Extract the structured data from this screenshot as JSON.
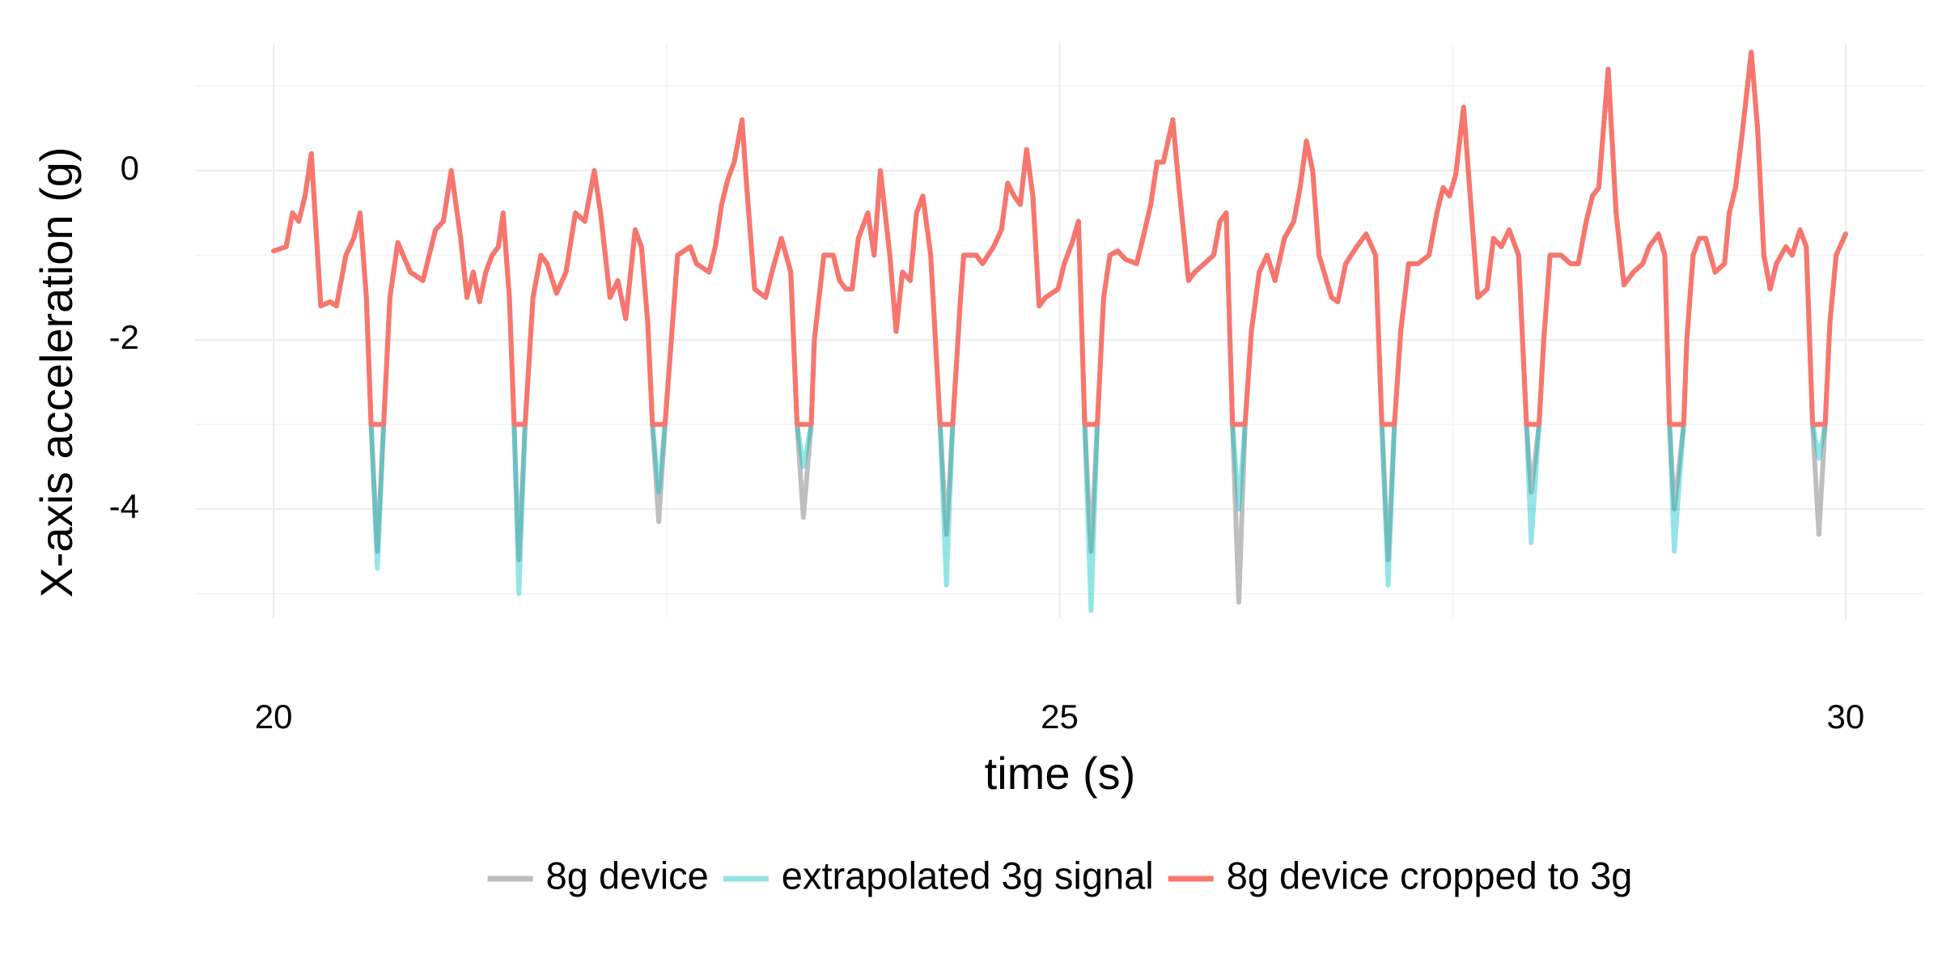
{
  "chart_data": {
    "type": "line",
    "x_label": "time (s)",
    "y_label": "X-axis acceleration (g)",
    "x": [
      20.0,
      20.08,
      20.12,
      20.16,
      20.2,
      20.24,
      20.3,
      20.36,
      20.4,
      20.46,
      20.51,
      20.55,
      20.59,
      20.62,
      20.66,
      20.7,
      20.74,
      20.79,
      20.87,
      20.95,
      20.99,
      21.03,
      21.08,
      21.13,
      21.19,
      21.23,
      21.27,
      21.31,
      21.35,
      21.39,
      21.43,
      21.46,
      21.5,
      21.53,
      21.56,
      21.6,
      21.65,
      21.7,
      21.74,
      21.8,
      21.86,
      21.92,
      21.98,
      22.04,
      22.08,
      22.14,
      22.19,
      22.24,
      22.3,
      22.34,
      22.38,
      22.41,
      22.45,
      22.49,
      22.53,
      22.57,
      22.65,
      22.69,
      22.77,
      22.81,
      22.85,
      22.89,
      22.93,
      22.98,
      23.01,
      23.06,
      23.13,
      23.17,
      23.23,
      23.29,
      23.33,
      23.37,
      23.42,
      23.44,
      23.5,
      23.56,
      23.6,
      23.64,
      23.68,
      23.72,
      23.78,
      23.82,
      23.86,
      23.92,
      23.96,
      24.0,
      24.05,
      24.09,
      24.13,
      24.18,
      24.24,
      24.28,
      24.32,
      24.37,
      24.39,
      24.47,
      24.51,
      24.58,
      24.63,
      24.67,
      24.71,
      24.75,
      24.79,
      24.83,
      24.87,
      24.91,
      24.99,
      25.03,
      25.08,
      25.12,
      25.16,
      25.2,
      25.24,
      25.28,
      25.32,
      25.37,
      25.42,
      25.49,
      25.53,
      25.58,
      25.62,
      25.66,
      25.72,
      25.76,
      25.82,
      25.86,
      25.92,
      25.98,
      26.02,
      26.06,
      26.1,
      26.14,
      26.18,
      26.22,
      26.27,
      26.32,
      26.37,
      26.43,
      26.49,
      26.53,
      26.57,
      26.61,
      26.65,
      26.73,
      26.77,
      26.82,
      26.89,
      26.95,
      27.01,
      27.05,
      27.09,
      27.13,
      27.17,
      27.22,
      27.28,
      27.35,
      27.4,
      27.44,
      27.48,
      27.52,
      27.57,
      27.62,
      27.66,
      27.72,
      27.76,
      27.81,
      27.86,
      27.92,
      27.97,
      28.0,
      28.05,
      28.08,
      28.12,
      28.19,
      28.25,
      28.3,
      28.35,
      28.39,
      28.43,
      28.49,
      28.54,
      28.59,
      28.65,
      28.71,
      28.75,
      28.81,
      28.85,
      28.88,
      28.91,
      28.97,
      28.99,
      29.03,
      29.07,
      29.11,
      29.17,
      29.23,
      29.26,
      29.3,
      29.34,
      29.4,
      29.44,
      29.48,
      29.52,
      29.56,
      29.62,
      29.66,
      29.71,
      29.75,
      29.79,
      29.83,
      29.87,
      29.9,
      29.94,
      30.0
    ],
    "series": [
      {
        "name": "8g device",
        "color": "#bebebe",
        "values": [
          -0.95,
          -0.9,
          -0.5,
          -0.6,
          -0.3,
          0.2,
          -1.6,
          -1.55,
          -1.6,
          -1.0,
          -0.8,
          -0.5,
          -1.5,
          -3.0,
          -4.5,
          -3.0,
          -1.5,
          -0.85,
          -1.2,
          -1.3,
          -1.0,
          -0.7,
          -0.6,
          0.0,
          -0.8,
          -1.5,
          -1.2,
          -1.55,
          -1.2,
          -1.0,
          -0.9,
          -0.5,
          -1.5,
          -3.0,
          -4.6,
          -3.0,
          -1.5,
          -1.0,
          -1.1,
          -1.45,
          -1.2,
          -0.5,
          -0.6,
          0.0,
          -0.5,
          -1.5,
          -1.3,
          -1.75,
          -0.7,
          -0.9,
          -1.8,
          -3.0,
          -4.15,
          -3.0,
          -2.0,
          -1.0,
          -0.9,
          -1.1,
          -1.2,
          -0.9,
          -0.4,
          -0.1,
          0.1,
          0.6,
          -0.2,
          -1.4,
          -1.5,
          -1.2,
          -0.8,
          -1.2,
          -3.0,
          -4.1,
          -3.0,
          -2.0,
          -1.0,
          -1.0,
          -1.3,
          -1.4,
          -1.4,
          -0.8,
          -0.5,
          -1.0,
          0.0,
          -1.0,
          -1.9,
          -1.2,
          -1.3,
          -0.5,
          -0.3,
          -1.0,
          -3.0,
          -4.3,
          -3.0,
          -1.5,
          -1.0,
          -1.0,
          -1.1,
          -0.9,
          -0.7,
          -0.15,
          -0.3,
          -0.4,
          0.25,
          -0.3,
          -1.6,
          -1.5,
          -1.4,
          -1.1,
          -0.85,
          -0.6,
          -3.0,
          -4.5,
          -3.0,
          -1.5,
          -1.0,
          -0.95,
          -1.05,
          -1.1,
          -0.8,
          -0.4,
          0.1,
          0.1,
          0.6,
          -0.2,
          -1.3,
          -1.2,
          -1.1,
          -1.0,
          -0.6,
          -0.5,
          -3.0,
          -5.1,
          -3.0,
          -1.9,
          -1.2,
          -1.0,
          -1.3,
          -0.8,
          -0.6,
          -0.2,
          0.35,
          0.0,
          -1.0,
          -1.5,
          -1.55,
          -1.1,
          -0.9,
          -0.75,
          -1.0,
          -3.0,
          -4.6,
          -3.0,
          -1.9,
          -1.1,
          -1.1,
          -1.0,
          -0.5,
          -0.2,
          -0.3,
          -0.05,
          0.75,
          -0.5,
          -1.5,
          -1.4,
          -0.8,
          -0.9,
          -0.7,
          -1.0,
          -3.0,
          -3.8,
          -3.0,
          -2.0,
          -1.0,
          -1.0,
          -1.1,
          -1.1,
          -0.6,
          -0.3,
          -0.2,
          1.2,
          -0.5,
          -1.35,
          -1.2,
          -1.1,
          -0.9,
          -0.75,
          -1.0,
          -3.0,
          -4.0,
          -3.0,
          -2.0,
          -1.0,
          -0.8,
          -0.8,
          -1.2,
          -1.1,
          -0.5,
          -0.2,
          0.4,
          1.4,
          0.5,
          -1.0,
          -1.4,
          -1.1,
          -0.9,
          -1.0,
          -0.7,
          -0.9,
          -3.0,
          -4.3,
          -3.0,
          -1.8,
          -1.0,
          -0.75
        ]
      },
      {
        "name": "extrapolated 3g signal",
        "color": "rgba(0,191,196,0.42)",
        "values": [
          -0.95,
          -0.9,
          -0.5,
          -0.6,
          -0.3,
          0.2,
          -1.6,
          -1.55,
          -1.6,
          -1.0,
          -0.8,
          -0.5,
          -1.5,
          -3.0,
          -4.7,
          -3.0,
          -1.5,
          -0.85,
          -1.2,
          -1.3,
          -1.0,
          -0.7,
          -0.6,
          0.0,
          -0.8,
          -1.5,
          -1.2,
          -1.55,
          -1.2,
          -1.0,
          -0.9,
          -0.5,
          -1.5,
          -3.0,
          -5.0,
          -3.0,
          -1.5,
          -1.0,
          -1.1,
          -1.45,
          -1.2,
          -0.5,
          -0.6,
          0.0,
          -0.5,
          -1.5,
          -1.3,
          -1.75,
          -0.7,
          -0.9,
          -1.8,
          -3.0,
          -3.8,
          -3.0,
          -2.0,
          -1.0,
          -0.9,
          -1.1,
          -1.2,
          -0.9,
          -0.4,
          -0.1,
          0.1,
          0.6,
          -0.2,
          -1.4,
          -1.5,
          -1.2,
          -0.8,
          -1.2,
          -3.0,
          -3.5,
          -3.0,
          -2.0,
          -1.0,
          -1.0,
          -1.3,
          -1.4,
          -1.4,
          -0.8,
          -0.5,
          -1.0,
          0.0,
          -1.0,
          -1.9,
          -1.2,
          -1.3,
          -0.5,
          -0.3,
          -1.0,
          -3.0,
          -4.9,
          -3.0,
          -1.5,
          -1.0,
          -1.0,
          -1.1,
          -0.9,
          -0.7,
          -0.15,
          -0.3,
          -0.4,
          0.25,
          -0.3,
          -1.6,
          -1.5,
          -1.4,
          -1.1,
          -0.85,
          -0.6,
          -3.0,
          -5.2,
          -3.0,
          -1.5,
          -1.0,
          -0.95,
          -1.05,
          -1.1,
          -0.8,
          -0.4,
          0.1,
          0.1,
          0.6,
          -0.2,
          -1.3,
          -1.2,
          -1.1,
          -1.0,
          -0.6,
          -0.5,
          -3.0,
          -4.0,
          -3.0,
          -1.9,
          -1.2,
          -1.0,
          -1.3,
          -0.8,
          -0.6,
          -0.2,
          0.35,
          0.0,
          -1.0,
          -1.5,
          -1.55,
          -1.1,
          -0.9,
          -0.75,
          -1.0,
          -3.0,
          -4.9,
          -3.0,
          -1.9,
          -1.1,
          -1.1,
          -1.0,
          -0.5,
          -0.2,
          -0.3,
          -0.05,
          0.75,
          -0.5,
          -1.5,
          -1.4,
          -0.8,
          -0.9,
          -0.7,
          -1.0,
          -3.0,
          -4.4,
          -3.0,
          -2.0,
          -1.0,
          -1.0,
          -1.1,
          -1.1,
          -0.6,
          -0.3,
          -0.2,
          1.2,
          -0.5,
          -1.35,
          -1.2,
          -1.1,
          -0.9,
          -0.75,
          -1.0,
          -3.0,
          -4.5,
          -3.0,
          -2.0,
          -1.0,
          -0.8,
          -0.8,
          -1.2,
          -1.1,
          -0.5,
          -0.2,
          0.4,
          1.4,
          0.5,
          -1.0,
          -1.4,
          -1.1,
          -0.9,
          -1.0,
          -0.7,
          -0.9,
          -3.0,
          -3.4,
          -3.0,
          -1.8,
          -1.0,
          -0.75
        ]
      },
      {
        "name": "8g device cropped to 3g",
        "color": "#F8766D",
        "values": [
          -0.95,
          -0.9,
          -0.5,
          -0.6,
          -0.3,
          0.2,
          -1.6,
          -1.55,
          -1.6,
          -1.0,
          -0.8,
          -0.5,
          -1.5,
          -3.0,
          -3.0,
          -3.0,
          -1.5,
          -0.85,
          -1.2,
          -1.3,
          -1.0,
          -0.7,
          -0.6,
          0.0,
          -0.8,
          -1.5,
          -1.2,
          -1.55,
          -1.2,
          -1.0,
          -0.9,
          -0.5,
          -1.5,
          -3.0,
          -3.0,
          -3.0,
          -1.5,
          -1.0,
          -1.1,
          -1.45,
          -1.2,
          -0.5,
          -0.6,
          0.0,
          -0.5,
          -1.5,
          -1.3,
          -1.75,
          -0.7,
          -0.9,
          -1.8,
          -3.0,
          -3.0,
          -3.0,
          -2.0,
          -1.0,
          -0.9,
          -1.1,
          -1.2,
          -0.9,
          -0.4,
          -0.1,
          0.1,
          0.6,
          -0.2,
          -1.4,
          -1.5,
          -1.2,
          -0.8,
          -1.2,
          -3.0,
          -3.0,
          -3.0,
          -2.0,
          -1.0,
          -1.0,
          -1.3,
          -1.4,
          -1.4,
          -0.8,
          -0.5,
          -1.0,
          0.0,
          -1.0,
          -1.9,
          -1.2,
          -1.3,
          -0.5,
          -0.3,
          -1.0,
          -3.0,
          -3.0,
          -3.0,
          -1.5,
          -1.0,
          -1.0,
          -1.1,
          -0.9,
          -0.7,
          -0.15,
          -0.3,
          -0.4,
          0.25,
          -0.3,
          -1.6,
          -1.5,
          -1.4,
          -1.1,
          -0.85,
          -0.6,
          -3.0,
          -3.0,
          -3.0,
          -1.5,
          -1.0,
          -0.95,
          -1.05,
          -1.1,
          -0.8,
          -0.4,
          0.1,
          0.1,
          0.6,
          -0.2,
          -1.3,
          -1.2,
          -1.1,
          -1.0,
          -0.6,
          -0.5,
          -3.0,
          -3.0,
          -3.0,
          -1.9,
          -1.2,
          -1.0,
          -1.3,
          -0.8,
          -0.6,
          -0.2,
          0.35,
          0.0,
          -1.0,
          -1.5,
          -1.55,
          -1.1,
          -0.9,
          -0.75,
          -1.0,
          -3.0,
          -3.0,
          -3.0,
          -1.9,
          -1.1,
          -1.1,
          -1.0,
          -0.5,
          -0.2,
          -0.3,
          -0.05,
          0.75,
          -0.5,
          -1.5,
          -1.4,
          -0.8,
          -0.9,
          -0.7,
          -1.0,
          -3.0,
          -3.0,
          -3.0,
          -2.0,
          -1.0,
          -1.0,
          -1.1,
          -1.1,
          -0.6,
          -0.3,
          -0.2,
          1.2,
          -0.5,
          -1.35,
          -1.2,
          -1.1,
          -0.9,
          -0.75,
          -1.0,
          -3.0,
          -3.0,
          -3.0,
          -2.0,
          -1.0,
          -0.8,
          -0.8,
          -1.2,
          -1.1,
          -0.5,
          -0.2,
          0.4,
          1.4,
          0.5,
          -1.0,
          -1.4,
          -1.1,
          -0.9,
          -1.0,
          -0.7,
          -0.9,
          -3.0,
          -3.0,
          -3.0,
          -1.8,
          -1.0,
          -0.75
        ]
      }
    ],
    "xlim": [
      19.5,
      30.5
    ],
    "ylim": [
      -5.3,
      1.5
    ],
    "xticks": [
      20,
      25,
      30
    ],
    "yticks": [
      -4,
      -2,
      0
    ],
    "x_minor_ticks": [
      22.5,
      27.5
    ],
    "y_minor_ticks": [
      -5,
      -3,
      -1,
      1
    ],
    "grid": true,
    "legend": "bottom"
  }
}
